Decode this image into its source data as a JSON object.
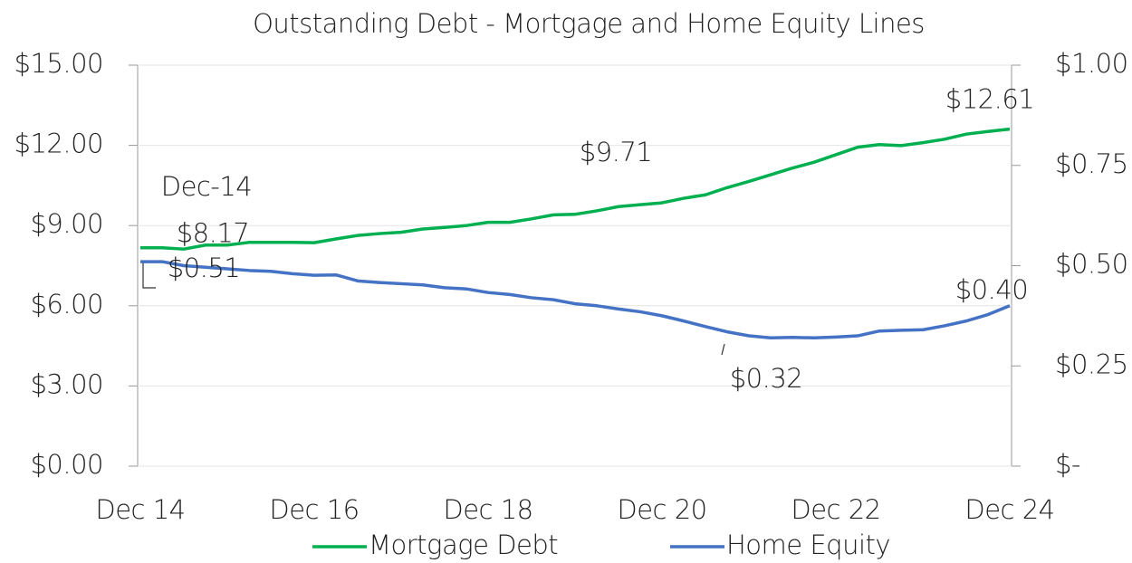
{
  "chart_data": {
    "type": "line",
    "title": "Outstanding Debt - Mortgage and Home Equity Lines",
    "annotations": [
      "Dec-14"
    ],
    "categories": [
      "Dec 14",
      null,
      null,
      null,
      null,
      null,
      null,
      null,
      "Dec 16",
      null,
      null,
      null,
      null,
      null,
      null,
      null,
      "Dec 18",
      null,
      null,
      null,
      null,
      null,
      null,
      null,
      "Dec 20",
      null,
      null,
      null,
      null,
      null,
      null,
      null,
      "Dec 22",
      null,
      null,
      null,
      null,
      null,
      null,
      null,
      "Dec 24"
    ],
    "series": [
      {
        "name": "Mortgage Debt",
        "color": "#00b050",
        "axis": "y",
        "values": [
          8.17,
          8.17,
          8.12,
          8.27,
          8.27,
          8.37,
          8.37,
          8.37,
          8.36,
          8.5,
          8.63,
          8.7,
          8.75,
          8.87,
          8.93,
          9.0,
          9.12,
          9.12,
          9.25,
          9.4,
          9.42,
          9.55,
          9.71,
          9.78,
          9.85,
          10.02,
          10.15,
          10.42,
          10.65,
          10.9,
          11.15,
          11.37,
          11.65,
          11.93,
          12.03,
          11.99,
          12.1,
          12.23,
          12.42,
          12.52,
          12.61
        ],
        "value_labels": [
          "$8.17",
          null,
          null,
          null,
          null,
          null,
          null,
          null,
          null,
          null,
          null,
          null,
          null,
          null,
          null,
          null,
          null,
          null,
          null,
          null,
          null,
          null,
          "$9.71",
          null,
          null,
          null,
          null,
          null,
          null,
          null,
          null,
          null,
          null,
          null,
          null,
          null,
          null,
          null,
          null,
          null,
          "$12.61"
        ]
      },
      {
        "name": "Home Equity",
        "color": "#4472c4",
        "axis": "y2",
        "values": [
          0.51,
          0.51,
          0.5,
          0.496,
          0.492,
          0.488,
          0.486,
          0.48,
          0.476,
          0.477,
          0.462,
          0.458,
          0.455,
          0.452,
          0.445,
          0.442,
          0.433,
          0.428,
          0.42,
          0.415,
          0.405,
          0.4,
          0.392,
          0.385,
          0.375,
          0.362,
          0.348,
          0.335,
          0.325,
          0.32,
          0.321,
          0.32,
          0.322,
          0.325,
          0.337,
          0.339,
          0.34,
          0.35,
          0.362,
          0.378,
          0.4
        ],
        "value_labels": [
          "$0.51",
          null,
          null,
          null,
          null,
          null,
          null,
          null,
          null,
          null,
          null,
          null,
          null,
          null,
          null,
          null,
          null,
          null,
          null,
          null,
          null,
          null,
          null,
          null,
          null,
          null,
          null,
          null,
          null,
          "$0.32",
          null,
          null,
          null,
          null,
          null,
          null,
          null,
          null,
          null,
          null,
          "$0.40"
        ]
      }
    ],
    "ylim": [
      0,
      15
    ],
    "yticks": [
      {
        "value": 0,
        "label": "$0.00"
      },
      {
        "value": 3,
        "label": "$3.00"
      },
      {
        "value": 6,
        "label": "$6.00"
      },
      {
        "value": 9,
        "label": "$9.00"
      },
      {
        "value": 12,
        "label": "$12.00"
      },
      {
        "value": 15,
        "label": "$15.00"
      }
    ],
    "y2lim": [
      0,
      1
    ],
    "y2ticks": [
      {
        "value": 0,
        "label": "$-"
      },
      {
        "value": 0.25,
        "label": "$0.25"
      },
      {
        "value": 0.5,
        "label": "$0.50"
      },
      {
        "value": 0.75,
        "label": "$0.75"
      },
      {
        "value": 1,
        "label": "$1.00"
      }
    ],
    "grid": true,
    "legend": "bottom"
  }
}
